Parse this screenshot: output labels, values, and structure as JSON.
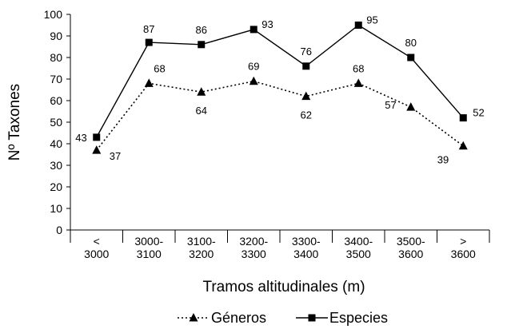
{
  "chart_data": {
    "type": "line",
    "categories": [
      "< 3000",
      "3000- 3100",
      "3100- 3200",
      "3200- 3300",
      "3300- 3400",
      "3400- 3500",
      "3500- 3600",
      "> 3600"
    ],
    "category_lines": [
      [
        "<",
        "3000"
      ],
      [
        "3000-",
        "3100"
      ],
      [
        "3100-",
        "3200"
      ],
      [
        "3200-",
        "3300"
      ],
      [
        "3300-",
        "3400"
      ],
      [
        "3400-",
        "3500"
      ],
      [
        "3500-",
        "3600"
      ],
      [
        ">",
        "3600"
      ]
    ],
    "series": [
      {
        "name": "Géneros",
        "values": [
          37,
          68,
          64,
          69,
          62,
          68,
          57,
          39
        ],
        "style": "dotted",
        "marker": "triangle",
        "color": "#000000"
      },
      {
        "name": "Especies",
        "values": [
          43,
          87,
          86,
          93,
          76,
          95,
          80,
          52
        ],
        "style": "solid",
        "marker": "square",
        "color": "#000000"
      }
    ],
    "title": "",
    "xlabel": "Tramos altitudinales (m)",
    "ylabel": "Nº Taxones",
    "ylim": [
      0,
      100
    ],
    "yticks": [
      0,
      10,
      20,
      30,
      40,
      50,
      60,
      70,
      80,
      90,
      100
    ],
    "legend_position": "bottom-center",
    "grid": false
  }
}
